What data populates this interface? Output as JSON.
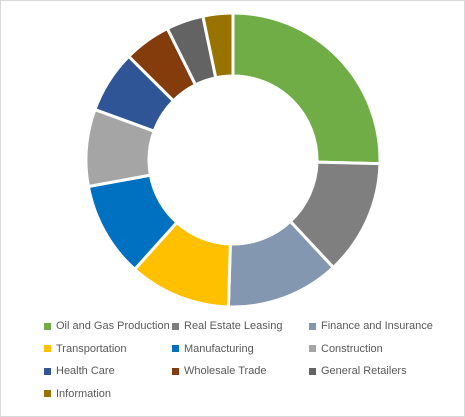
{
  "chart_data": {
    "type": "pie",
    "donut": true,
    "title": "",
    "legend_position": "bottom",
    "categories": [
      "Oil and Gas Production",
      "Real Estate Leasing",
      "Finance and Insurance",
      "Transportation",
      "Manufacturing",
      "Construction",
      "Health Care",
      "Wholesale Trade",
      "General Retailers",
      "Information"
    ],
    "values": [
      25.5,
      12.7,
      12.5,
      11.2,
      10.5,
      8.5,
      6.9,
      5.2,
      4.1,
      3.3
    ],
    "colors": [
      "#70ad47",
      "#7f7f7f",
      "#8497b0",
      "#ffc000",
      "#0070c0",
      "#a5a5a5",
      "#2f5597",
      "#843c0c",
      "#636363",
      "#997300"
    ]
  }
}
